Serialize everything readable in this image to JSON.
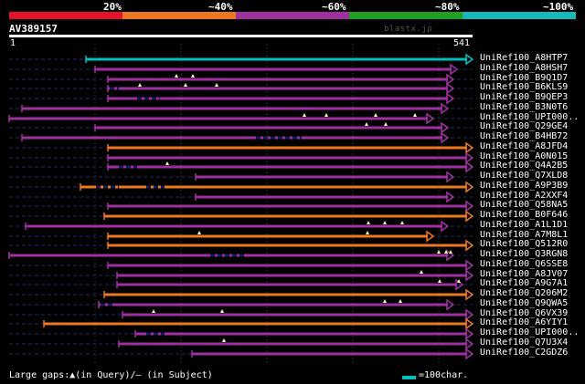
{
  "colors": {
    "bg": "#000000",
    "grid": "#2a2a2a",
    "faint": "#1e2a66",
    "dash": "#141c55",
    "scale": [
      "#e5132a",
      "#ee7722",
      "#a030a0",
      "#20a020",
      "#18b8b8"
    ],
    "identity": {
      "100": "#00bfbf",
      "80": "#a030a0",
      "60": "#ee7722",
      "40": "#a030a0"
    },
    "marker": "#ffffaa"
  },
  "scale_labels": [
    "20%",
    "~40%",
    "~60%",
    "~80%",
    "~100%"
  ],
  "query": {
    "id": "AV389157",
    "start": "1",
    "end": "541",
    "length": 541,
    "db_note": "blastx.jp"
  },
  "legend": {
    "gaps": "Large gaps:▲(in Query)/– (in Subject)",
    "scale": "=100char."
  },
  "hits": [
    {
      "label": "UniRef100_A8HTP7",
      "identity": "100",
      "start": 94,
      "end": 517,
      "gaps": [],
      "dashes": []
    },
    {
      "label": "UniRef100_A8HSH7",
      "identity": "80",
      "start": 104,
      "end": 500,
      "gaps": [],
      "dashes": []
    },
    {
      "label": "UniRef100_B9Q1D7",
      "identity": "80",
      "start": 118,
      "end": 496,
      "gaps": [
        193,
        211
      ],
      "dashes": []
    },
    {
      "label": "UniRef100_B6KLS9",
      "identity": "80",
      "start": 118,
      "end": 496,
      "gaps": [
        153,
        203,
        237
      ],
      "dashes": [
        [
          120,
          130
        ]
      ]
    },
    {
      "label": "UniRef100_B9QEP3",
      "identity": "80",
      "start": 118,
      "end": 496,
      "gaps": [],
      "dashes": [
        [
          150,
          175
        ]
      ]
    },
    {
      "label": "UniRef100_B3N0T6",
      "identity": "80",
      "start": 24,
      "end": 490,
      "gaps": [],
      "dashes": []
    },
    {
      "label": "UniRef100_UPI000..",
      "identity": "80",
      "start": 10,
      "end": 474,
      "gaps": [
        333,
        357,
        411,
        454
      ],
      "dashes": []
    },
    {
      "label": "UniRef100_Q29GE4",
      "identity": "80",
      "start": 104,
      "end": 490,
      "gaps": [
        401,
        422
      ],
      "dashes": []
    },
    {
      "label": "UniRef100_B4HB72",
      "identity": "80",
      "start": 24,
      "end": 490,
      "gaps": [],
      "dashes": [
        [
          280,
          330
        ]
      ]
    },
    {
      "label": "UniRef100_A8JFD4",
      "identity": "60",
      "start": 118,
      "end": 517,
      "gaps": [],
      "dashes": []
    },
    {
      "label": "UniRef100_A0N015",
      "identity": "80",
      "start": 118,
      "end": 517,
      "gaps": [],
      "dashes": []
    },
    {
      "label": "UniRef100_Q4A2B5",
      "identity": "80",
      "start": 118,
      "end": 517,
      "gaps": [
        183
      ],
      "dashes": [
        [
          130,
          150
        ]
      ]
    },
    {
      "label": "UniRef100_Q7XLD8",
      "identity": "80",
      "start": 214,
      "end": 496,
      "gaps": [],
      "dashes": []
    },
    {
      "label": "UniRef100_A9P3B9",
      "identity": "60",
      "start": 88,
      "end": 517,
      "gaps": [],
      "dashes": [
        [
          105,
          130
        ],
        [
          160,
          180
        ]
      ]
    },
    {
      "label": "UniRef100_A2XXF4",
      "identity": "80",
      "start": 214,
      "end": 496,
      "gaps": [],
      "dashes": []
    },
    {
      "label": "UniRef100_Q58NA5",
      "identity": "80",
      "start": 118,
      "end": 517,
      "gaps": [],
      "dashes": []
    },
    {
      "label": "UniRef100_B0F646",
      "identity": "60",
      "start": 114,
      "end": 517,
      "gaps": [],
      "dashes": []
    },
    {
      "label": "UniRef100_A1L1D1",
      "identity": "80",
      "start": 28,
      "end": 490,
      "gaps": [
        403,
        421,
        440
      ],
      "dashes": []
    },
    {
      "label": "UniRef100_A7M8L1",
      "identity": "60",
      "start": 118,
      "end": 474,
      "gaps": [
        218,
        402
      ],
      "dashes": []
    },
    {
      "label": "UniRef100_Q512R0",
      "identity": "60",
      "start": 118,
      "end": 517,
      "gaps": [],
      "dashes": []
    },
    {
      "label": "UniRef100_Q3RGN8",
      "identity": "80",
      "start": 10,
      "end": 496,
      "gaps": [
        480,
        488,
        493
      ],
      "dashes": [
        [
          230,
          270
        ]
      ]
    },
    {
      "label": "UniRef100_Q6SSE8",
      "identity": "80",
      "start": 118,
      "end": 517,
      "gaps": [],
      "dashes": []
    },
    {
      "label": "UniRef100_A8JV07",
      "identity": "80",
      "start": 128,
      "end": 517,
      "gaps": [
        461
      ],
      "dashes": []
    },
    {
      "label": "UniRef100_A9G7A1",
      "identity": "80",
      "start": 128,
      "end": 506,
      "gaps": [
        481,
        502
      ],
      "dashes": []
    },
    {
      "label": "UniRef100_Q206M2",
      "identity": "60",
      "start": 114,
      "end": 517,
      "gaps": [],
      "dashes": []
    },
    {
      "label": "UniRef100_Q9QWA5",
      "identity": "80",
      "start": 108,
      "end": 496,
      "gaps": [
        421,
        438
      ],
      "dashes": [
        [
          110,
          125
        ]
      ]
    },
    {
      "label": "UniRef100_Q6VX39",
      "identity": "80",
      "start": 134,
      "end": 517,
      "gaps": [
        168,
        243
      ],
      "dashes": []
    },
    {
      "label": "UniRef100_A6YIY1",
      "identity": "60",
      "start": 48,
      "end": 517,
      "gaps": [],
      "dashes": []
    },
    {
      "label": "UniRef100_UPI000..",
      "identity": "80",
      "start": 148,
      "end": 517,
      "gaps": [],
      "dashes": [
        [
          160,
          180
        ]
      ]
    },
    {
      "label": "UniRef100_Q7U3X4",
      "identity": "80",
      "start": 130,
      "end": 517,
      "gaps": [
        245
      ],
      "dashes": []
    },
    {
      "label": "UniRef100_C2GDZ6",
      "identity": "80",
      "start": 210,
      "end": 517,
      "gaps": [],
      "dashes": []
    }
  ]
}
